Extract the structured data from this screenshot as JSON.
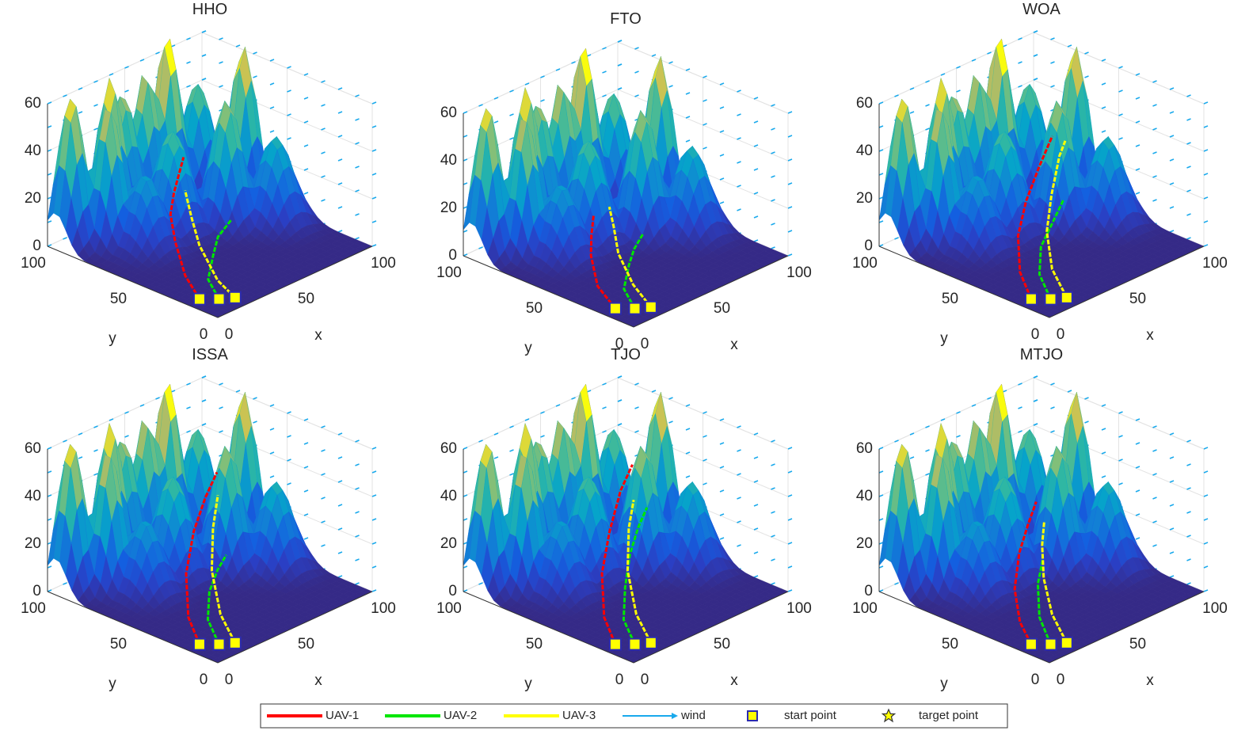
{
  "chart_data": [
    {
      "type": "surface3d",
      "title": "HHO",
      "xlabel": "x",
      "ylabel": "y",
      "xlim": [
        0,
        100
      ],
      "ylim": [
        0,
        100
      ],
      "zlim": [
        0,
        60
      ],
      "xticks": [
        0,
        50,
        100
      ],
      "yticks": [
        0,
        50,
        100
      ],
      "zticks": [
        0,
        20,
        40,
        60
      ],
      "series": [
        {
          "x": [
            8,
            12,
            22,
            30,
            40,
            55
          ],
          "y": [
            18,
            30,
            45,
            55,
            62,
            70
          ],
          "z": [
            0,
            5,
            12,
            18,
            22,
            30
          ]
        },
        {
          "x": [
            14,
            18,
            30,
            42,
            55
          ],
          "y": [
            12,
            22,
            30,
            38,
            42
          ],
          "z": [
            0,
            4,
            8,
            10,
            12
          ]
        },
        {
          "x": [
            20,
            22,
            30,
            38,
            45
          ],
          "y": [
            8,
            20,
            38,
            50,
            60
          ],
          "z": [
            0,
            3,
            10,
            16,
            22
          ]
        }
      ]
    },
    {
      "type": "surface3d",
      "title": "FTO",
      "xlabel": "x",
      "ylabel": "y",
      "xlim": [
        0,
        100
      ],
      "ylim": [
        0,
        100
      ],
      "zlim": [
        0,
        60
      ],
      "xticks": [
        0,
        50,
        100
      ],
      "yticks": [
        0,
        50,
        100
      ],
      "zticks": [
        0,
        20,
        40,
        60
      ],
      "series": [
        {
          "x": [
            8,
            12,
            22,
            30,
            38
          ],
          "y": [
            18,
            32,
            45,
            52,
            58
          ],
          "z": [
            0,
            4,
            10,
            14,
            18
          ]
        },
        {
          "x": [
            14,
            18,
            30,
            40,
            50
          ],
          "y": [
            12,
            22,
            30,
            36,
            40
          ],
          "z": [
            0,
            4,
            8,
            10,
            12
          ]
        },
        {
          "x": [
            20,
            24,
            32,
            40,
            46
          ],
          "y": [
            8,
            22,
            38,
            48,
            56
          ],
          "z": [
            0,
            4,
            10,
            16,
            20
          ]
        }
      ]
    },
    {
      "type": "surface3d",
      "title": "WOA",
      "xlabel": "x",
      "ylabel": "y",
      "xlim": [
        0,
        100
      ],
      "ylim": [
        0,
        100
      ],
      "zlim": [
        0,
        60
      ],
      "xticks": [
        0,
        50,
        100
      ],
      "yticks": [
        0,
        50,
        100
      ],
      "zticks": [
        0,
        20,
        40,
        60
      ],
      "series": [
        {
          "x": [
            8,
            14,
            26,
            40,
            55,
            68
          ],
          "y": [
            18,
            30,
            42,
            50,
            56,
            60
          ],
          "z": [
            0,
            6,
            14,
            22,
            30,
            38
          ]
        },
        {
          "x": [
            14,
            20,
            32,
            46,
            60
          ],
          "y": [
            12,
            24,
            34,
            40,
            46
          ],
          "z": [
            0,
            5,
            10,
            14,
            18
          ]
        },
        {
          "x": [
            20,
            26,
            38,
            52,
            66,
            72
          ],
          "y": [
            8,
            22,
            36,
            46,
            54,
            56
          ],
          "z": [
            0,
            6,
            14,
            22,
            32,
            36
          ]
        }
      ]
    },
    {
      "type": "surface3d",
      "title": "ISSA",
      "xlabel": "x",
      "ylabel": "y",
      "xlim": [
        0,
        100
      ],
      "ylim": [
        0,
        100
      ],
      "zlim": [
        0,
        60
      ],
      "xticks": [
        0,
        50,
        100
      ],
      "yticks": [
        0,
        50,
        100
      ],
      "zticks": [
        0,
        20,
        40,
        60
      ],
      "series": [
        {
          "x": [
            8,
            14,
            28,
            44,
            58,
            70
          ],
          "y": [
            18,
            30,
            44,
            54,
            60,
            64
          ],
          "z": [
            0,
            6,
            16,
            26,
            34,
            40
          ]
        },
        {
          "x": [
            14,
            20,
            32,
            44,
            54
          ],
          "y": [
            12,
            24,
            34,
            40,
            44
          ],
          "z": [
            0,
            5,
            10,
            14,
            16
          ]
        },
        {
          "x": [
            20,
            26,
            38,
            52,
            64
          ],
          "y": [
            8,
            22,
            38,
            50,
            58
          ],
          "z": [
            0,
            6,
            16,
            26,
            34
          ]
        }
      ]
    },
    {
      "type": "surface3d",
      "title": "TJO",
      "xlabel": "x",
      "ylabel": "y",
      "xlim": [
        0,
        100
      ],
      "ylim": [
        0,
        100
      ],
      "zlim": [
        0,
        60
      ],
      "xticks": [
        0,
        50,
        100
      ],
      "yticks": [
        0,
        50,
        100
      ],
      "zticks": [
        0,
        20,
        40,
        60
      ],
      "series": [
        {
          "x": [
            8,
            14,
            28,
            44,
            60,
            72
          ],
          "y": [
            18,
            30,
            44,
            54,
            62,
            66
          ],
          "z": [
            0,
            6,
            16,
            26,
            36,
            42
          ]
        },
        {
          "x": [
            14,
            20,
            32,
            44,
            56,
            66
          ],
          "y": [
            12,
            24,
            34,
            42,
            48,
            52
          ],
          "z": [
            0,
            5,
            12,
            20,
            26,
            30
          ]
        },
        {
          "x": [
            20,
            26,
            38,
            52,
            64
          ],
          "y": [
            8,
            22,
            38,
            50,
            58
          ],
          "z": [
            0,
            6,
            16,
            26,
            32
          ]
        }
      ]
    },
    {
      "type": "surface3d",
      "title": "MTJO",
      "xlabel": "x",
      "ylabel": "y",
      "xlim": [
        0,
        100
      ],
      "ylim": [
        0,
        100
      ],
      "zlim": [
        0,
        60
      ],
      "xticks": [
        0,
        50,
        100
      ],
      "yticks": [
        0,
        50,
        100
      ],
      "zticks": [
        0,
        20,
        40,
        60
      ],
      "series": [
        {
          "x": [
            8,
            14,
            26,
            40,
            52,
            62
          ],
          "y": [
            18,
            30,
            44,
            54,
            60,
            64
          ],
          "z": [
            0,
            4,
            10,
            18,
            24,
            30
          ]
        },
        {
          "x": [
            14,
            20,
            30,
            40
          ],
          "y": [
            12,
            24,
            34,
            40
          ],
          "z": [
            0,
            6,
            14,
            20
          ]
        },
        {
          "x": [
            20,
            26,
            36,
            46,
            54
          ],
          "y": [
            8,
            22,
            36,
            46,
            52
          ],
          "z": [
            0,
            6,
            14,
            22,
            28
          ]
        }
      ]
    }
  ],
  "legend": {
    "entries": [
      {
        "name": "UAV-1",
        "color": "#ff0000"
      },
      {
        "name": "UAV-2",
        "color": "#00e600"
      },
      {
        "name": "UAV-3",
        "color": "#ffff00"
      },
      {
        "name": "wind",
        "color": "#19a9ec"
      },
      {
        "name": "start point",
        "color": "#ffff00"
      },
      {
        "name": "target point",
        "color": "#ffff00"
      }
    ]
  }
}
